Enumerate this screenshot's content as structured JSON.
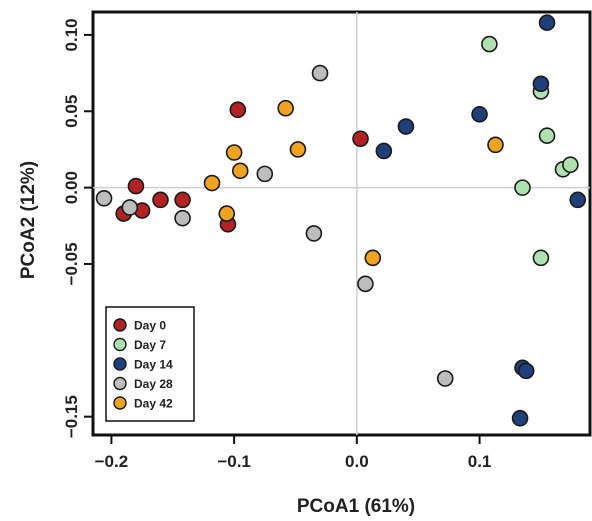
{
  "chart_data": {
    "type": "scatter",
    "title": "",
    "xlabel": "PCoA1 (61%)",
    "ylabel": "PCoA2 (12%)",
    "xlim": [
      -0.215,
      0.19
    ],
    "ylim": [
      -0.162,
      0.115
    ],
    "grid": "reference lines at x=0 and y=0",
    "legend_position": "bottom-left",
    "xticks": [
      {
        "value": -0.2,
        "label": "−0.2"
      },
      {
        "value": -0.1,
        "label": "−0.1"
      },
      {
        "value": 0.0,
        "label": "0.0"
      },
      {
        "value": 0.1,
        "label": "0.1"
      }
    ],
    "yticks": [
      {
        "value": 0.1,
        "label": "0.10"
      },
      {
        "value": 0.05,
        "label": "0.05"
      },
      {
        "value": 0.0,
        "label": "0.00"
      },
      {
        "value": -0.05,
        "label": "−0.05"
      },
      {
        "value": -0.15,
        "label": "−0.15"
      }
    ],
    "series": [
      {
        "name": "Day 0",
        "color": "#b22222",
        "points": [
          [
            -0.19,
            -0.017
          ],
          [
            -0.18,
            0.001
          ],
          [
            -0.175,
            -0.015
          ],
          [
            -0.16,
            -0.008
          ],
          [
            -0.142,
            -0.008
          ],
          [
            -0.105,
            -0.024
          ],
          [
            -0.097,
            0.051
          ],
          [
            0.003,
            0.032
          ]
        ]
      },
      {
        "name": "Day 7",
        "color": "#aee0b0",
        "points": [
          [
            0.108,
            0.094
          ],
          [
            0.15,
            0.063
          ],
          [
            0.155,
            0.034
          ],
          [
            0.168,
            0.012
          ],
          [
            0.174,
            0.015
          ],
          [
            0.135,
            0.0
          ],
          [
            0.15,
            -0.046
          ]
        ]
      },
      {
        "name": "Day 14",
        "color": "#1f3f7a",
        "points": [
          [
            0.155,
            0.108
          ],
          [
            0.15,
            0.068
          ],
          [
            0.1,
            0.048
          ],
          [
            0.04,
            0.04
          ],
          [
            0.022,
            0.024
          ],
          [
            0.18,
            -0.008
          ],
          [
            0.135,
            -0.118
          ],
          [
            0.138,
            -0.12
          ],
          [
            0.133,
            -0.151
          ]
        ]
      },
      {
        "name": "Day 28",
        "color": "#bdbdbd",
        "points": [
          [
            -0.206,
            -0.007
          ],
          [
            -0.185,
            -0.013
          ],
          [
            -0.142,
            -0.02
          ],
          [
            -0.075,
            0.009
          ],
          [
            -0.03,
            0.075
          ],
          [
            -0.035,
            -0.03
          ],
          [
            0.007,
            -0.063
          ],
          [
            0.072,
            -0.125
          ]
        ]
      },
      {
        "name": "Day 42",
        "color": "#f0a31f",
        "points": [
          [
            -0.118,
            0.003
          ],
          [
            -0.1,
            0.023
          ],
          [
            -0.095,
            0.011
          ],
          [
            -0.058,
            0.052
          ],
          [
            -0.048,
            0.025
          ],
          [
            -0.106,
            -0.017
          ],
          [
            0.013,
            -0.046
          ],
          [
            0.113,
            0.028
          ]
        ]
      }
    ]
  }
}
